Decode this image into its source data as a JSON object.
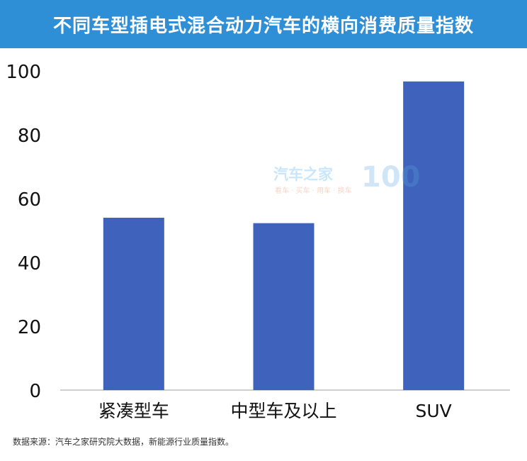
{
  "colors": {
    "title_bg": "#2f8fd6",
    "bar": "#3f63bd",
    "axis": "#bfbfbf"
  },
  "chart_data": {
    "type": "bar",
    "title": "不同车型插电式混合动力汽车的横向消费质量指数",
    "categories": [
      "紧凑型车",
      "中型车及以上",
      "SUV"
    ],
    "values": [
      54,
      52.3,
      96.7
    ],
    "ylim": [
      0,
      100
    ],
    "yticks": [
      0,
      20,
      40,
      60,
      80,
      100
    ],
    "xlabel": "",
    "ylabel": "",
    "grid": false,
    "legend": "none"
  },
  "watermark": {
    "brand": "汽车之家",
    "tags": "看车 · 买车 · 用车 · 换车",
    "number": "100"
  },
  "footer": {
    "source": "数据来源：汽车之家研究院大数据，新能源行业质量指数。"
  }
}
